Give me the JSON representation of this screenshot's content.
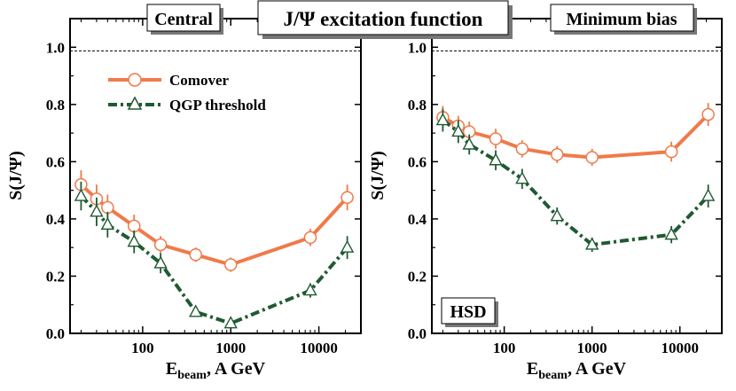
{
  "main_title": "J/Ψ excitation function",
  "chart_data": [
    {
      "type": "line",
      "panel_label": "Central",
      "xlabel_main": "E",
      "xlabel_sub": "beam",
      "xlabel_rest": ",  A GeV",
      "ylabel": "S(J/Ψ)",
      "xscale": "log",
      "xlim": [
        15,
        30000
      ],
      "ylim": [
        0.0,
        1.1
      ],
      "x_ticks": [
        100,
        1000,
        10000
      ],
      "x_tick_labels": [
        "100",
        "1000",
        "10000"
      ],
      "y_ticks": [
        0.0,
        0.2,
        0.4,
        0.6,
        0.8,
        1.0
      ],
      "y_tick_labels": [
        "0.0",
        "0.2",
        "0.4",
        "0.6",
        "0.8",
        "1.0"
      ],
      "reference_line": 1.0,
      "legend": {
        "position": "top-left",
        "entries": [
          "Comover",
          "QGP threshold"
        ]
      },
      "series": [
        {
          "name": "Comover",
          "color": "#f07a4a",
          "marker": "circle",
          "x": [
            20,
            30,
            40,
            80,
            160,
            400,
            1000,
            8000,
            21000
          ],
          "y": [
            0.52,
            0.47,
            0.44,
            0.375,
            0.31,
            0.275,
            0.24,
            0.335,
            0.475
          ],
          "err": [
            0.05,
            0.05,
            0.045,
            0.04,
            0.03,
            0.025,
            0.025,
            0.03,
            0.045
          ]
        },
        {
          "name": "QGP threshold",
          "color": "#1e5a32",
          "marker": "triangle",
          "x": [
            20,
            30,
            40,
            80,
            160,
            400,
            1000,
            8000,
            21000
          ],
          "y": [
            0.48,
            0.425,
            0.38,
            0.32,
            0.245,
            0.075,
            0.035,
            0.15,
            0.3
          ],
          "err": [
            0.05,
            0.05,
            0.045,
            0.04,
            0.035,
            0.015,
            0.012,
            0.025,
            0.04
          ]
        }
      ]
    },
    {
      "type": "line",
      "panel_label": "Minimum bias",
      "model_label": "HSD",
      "xlabel_main": "E",
      "xlabel_sub": "beam",
      "xlabel_rest": ",  A GeV",
      "ylabel": "S(J/Ψ)",
      "xscale": "log",
      "xlim": [
        15,
        30000
      ],
      "ylim": [
        0.0,
        1.1
      ],
      "x_ticks": [
        100,
        1000,
        10000
      ],
      "x_tick_labels": [
        "100",
        "1000",
        "10000"
      ],
      "y_ticks": [
        0.0,
        0.2,
        0.4,
        0.6,
        0.8,
        1.0
      ],
      "y_tick_labels": [
        "0.0",
        "0.2",
        "0.4",
        "0.6",
        "0.8",
        "1.0"
      ],
      "reference_line": 1.0,
      "series": [
        {
          "name": "Comover",
          "color": "#f07a4a",
          "marker": "circle",
          "x": [
            20,
            30,
            40,
            80,
            160,
            400,
            1000,
            8000,
            21000
          ],
          "y": [
            0.755,
            0.725,
            0.705,
            0.68,
            0.645,
            0.625,
            0.615,
            0.635,
            0.765
          ],
          "err": [
            0.04,
            0.035,
            0.035,
            0.035,
            0.03,
            0.03,
            0.03,
            0.035,
            0.04
          ]
        },
        {
          "name": "QGP threshold",
          "color": "#1e5a32",
          "marker": "triangle",
          "x": [
            20,
            30,
            40,
            80,
            160,
            400,
            1000,
            8000,
            21000
          ],
          "y": [
            0.745,
            0.705,
            0.66,
            0.605,
            0.54,
            0.41,
            0.31,
            0.345,
            0.48
          ],
          "err": [
            0.04,
            0.04,
            0.035,
            0.035,
            0.035,
            0.03,
            0.025,
            0.03,
            0.04
          ]
        }
      ]
    }
  ]
}
